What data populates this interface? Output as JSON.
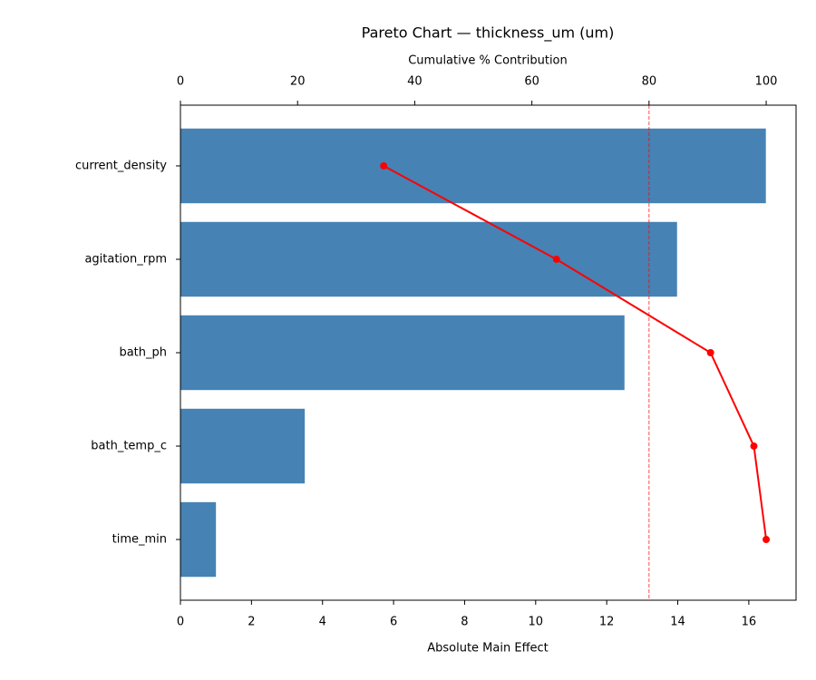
{
  "chart_data": {
    "type": "bar",
    "title": "Pareto Chart — thickness_um (um)",
    "xlabel": "Absolute Main Effect",
    "x2label": "Cumulative % Contribution",
    "categories": [
      "current_density",
      "agitation_rpm",
      "bath_ph",
      "bath_temp_c",
      "time_min"
    ],
    "values": [
      16.48,
      13.98,
      12.5,
      3.5,
      1.0
    ],
    "color": "#4682b4",
    "cumulative": {
      "values": [
        34.7,
        64.2,
        90.5,
        97.9,
        100
      ],
      "color": "#ff0000",
      "axis": "x2"
    },
    "threshold": 80,
    "xlim": [
      0,
      17.33
    ],
    "xticks": [
      0,
      2,
      4,
      6,
      8,
      10,
      12,
      14,
      16
    ],
    "x2lim": [
      0,
      105.1
    ],
    "x2ticks": [
      0,
      20,
      40,
      60,
      80,
      100
    ]
  }
}
